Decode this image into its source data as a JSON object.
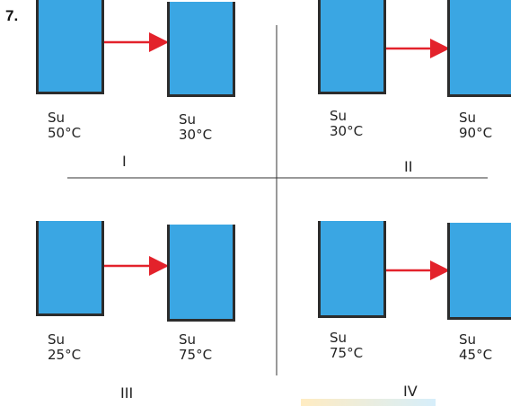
{
  "question_number": "7.",
  "quadrants": [
    {
      "roman": "I",
      "left": {
        "substance": "Su",
        "temperature": "50°C"
      },
      "right": {
        "substance": "Su",
        "temperature": "30°C"
      }
    },
    {
      "roman": "II",
      "left": {
        "substance": "Su",
        "temperature": "30°C"
      },
      "right": {
        "substance": "Su",
        "temperature": "90°C"
      }
    },
    {
      "roman": "III",
      "left": {
        "substance": "Su",
        "temperature": "25°C"
      },
      "right": {
        "substance": "Su",
        "temperature": "75°C"
      }
    },
    {
      "roman": "IV",
      "left": {
        "substance": "Su",
        "temperature": "75°C"
      },
      "right": {
        "substance": "Su",
        "temperature": "45°C"
      }
    }
  ],
  "colors": {
    "water": "#3aa6e3",
    "arrow": "#e3222b",
    "outline": "#2c2c2c"
  }
}
